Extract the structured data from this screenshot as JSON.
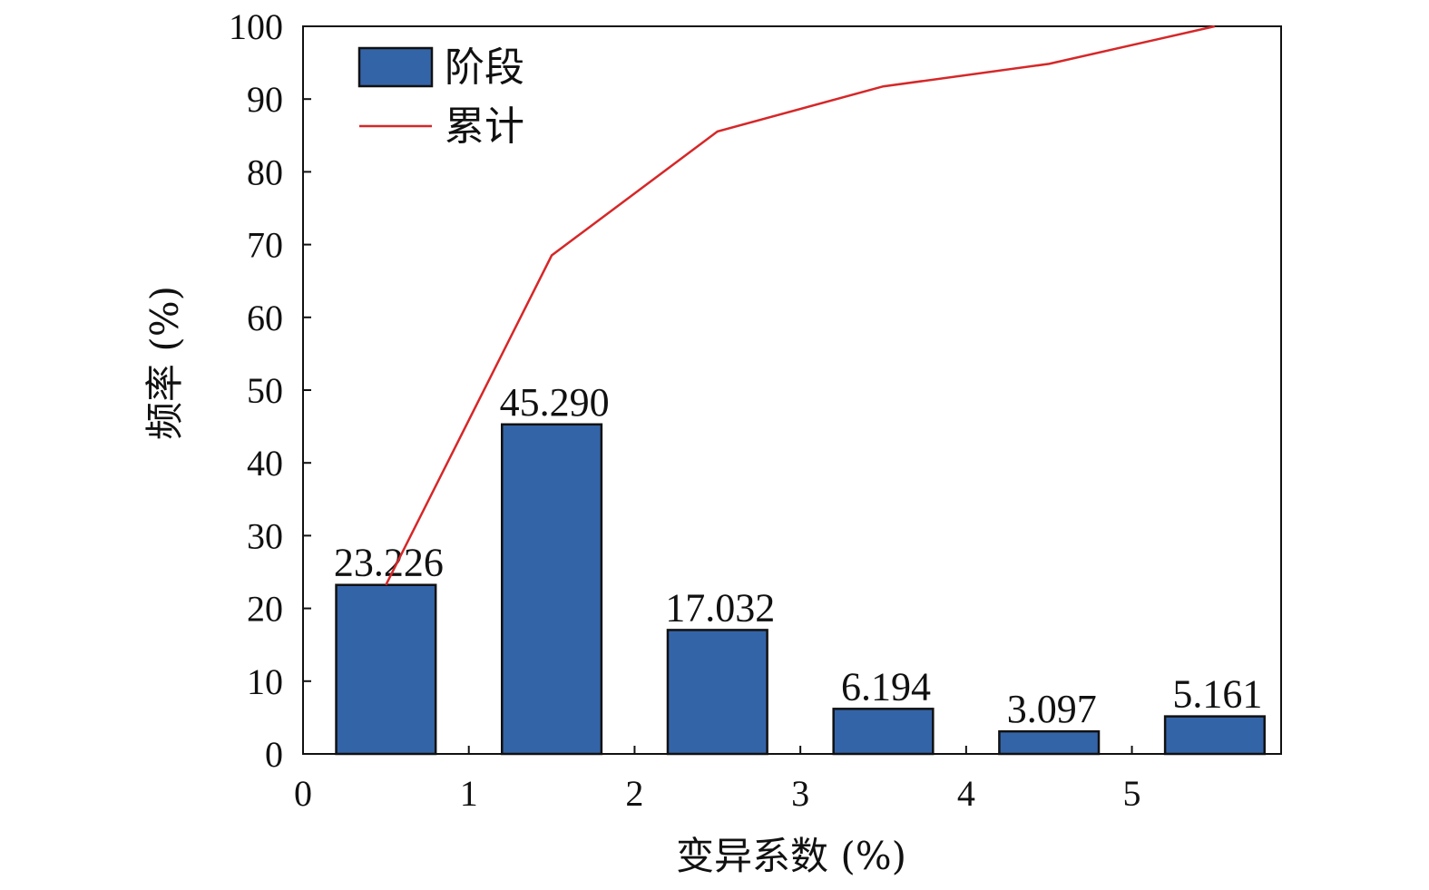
{
  "chart_data": {
    "type": "bar",
    "xlabel": "变异系数 (%)",
    "ylabel": "频率 (%)",
    "xlim": [
      0,
      5.9
    ],
    "ylim": [
      0,
      100
    ],
    "x_ticks": [
      0,
      1,
      2,
      3,
      4,
      5
    ],
    "y_ticks": [
      0,
      10,
      20,
      30,
      40,
      50,
      60,
      70,
      80,
      90,
      100
    ],
    "grid": false,
    "legend_position": "top-left",
    "legend": [
      {
        "label": "阶段",
        "kind": "bar"
      },
      {
        "label": "累计",
        "kind": "line"
      }
    ],
    "bars": {
      "name": "阶段",
      "color": "#3464a8",
      "x": [
        0.5,
        1.5,
        2.5,
        3.5,
        4.5,
        5.5
      ],
      "values": [
        23.226,
        45.29,
        17.032,
        6.194,
        3.097,
        5.161
      ],
      "labels": [
        "23.226",
        "45.290",
        "17.032",
        "6.194",
        "3.097",
        "5.161"
      ]
    },
    "line": {
      "name": "累计",
      "color": "#d62728",
      "x": [
        0.5,
        1.5,
        2.5,
        3.5,
        4.5,
        5.5
      ],
      "values": [
        23.226,
        68.516,
        85.548,
        91.742,
        94.839,
        100
      ]
    }
  }
}
